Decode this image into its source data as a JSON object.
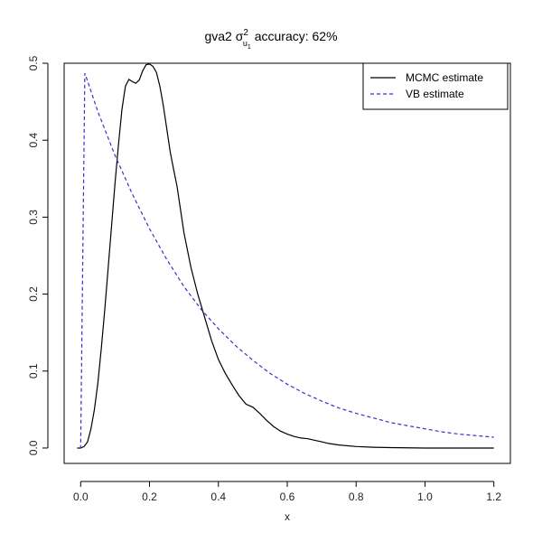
{
  "chart_data": {
    "type": "line",
    "title": {
      "prefix": "gva2 ",
      "symbol": "σ",
      "superscript": "2",
      "subscript_main": "u",
      "subscript_sub": "1",
      "suffix": " accuracy: 62%"
    },
    "xlabel": "x",
    "ylabel": "",
    "xlim": [
      -0.048,
      1.248
    ],
    "ylim": [
      -0.02,
      0.5
    ],
    "x_ticks": [
      0.0,
      0.2,
      0.4,
      0.6,
      0.8,
      1.0,
      1.2
    ],
    "x_tick_labels": [
      "0.0",
      "0.2",
      "0.4",
      "0.6",
      "0.8",
      "1.0",
      "1.2"
    ],
    "y_ticks": [
      0.0,
      0.1,
      0.2,
      0.3,
      0.4,
      0.5
    ],
    "y_tick_labels": [
      "0.0",
      "0.1",
      "0.2",
      "0.3",
      "0.4",
      "0.5"
    ],
    "grid": false,
    "legend_position": "top-right",
    "series": [
      {
        "name": "MCMC estimate",
        "style": "solid",
        "color": "#000000",
        "x": [
          -0.01,
          0.0,
          0.01,
          0.02,
          0.03,
          0.04,
          0.05,
          0.06,
          0.07,
          0.08,
          0.09,
          0.1,
          0.11,
          0.12,
          0.13,
          0.14,
          0.15,
          0.16,
          0.17,
          0.18,
          0.19,
          0.2,
          0.21,
          0.22,
          0.23,
          0.24,
          0.25,
          0.26,
          0.27,
          0.28,
          0.29,
          0.3,
          0.32,
          0.34,
          0.36,
          0.38,
          0.4,
          0.42,
          0.44,
          0.46,
          0.48,
          0.5,
          0.52,
          0.54,
          0.56,
          0.58,
          0.6,
          0.62,
          0.64,
          0.66,
          0.68,
          0.7,
          0.72,
          0.75,
          0.8,
          0.85,
          0.9,
          1.0,
          1.1,
          1.2
        ],
        "y": [
          0.0,
          0.0,
          0.002,
          0.008,
          0.025,
          0.05,
          0.085,
          0.13,
          0.18,
          0.235,
          0.29,
          0.345,
          0.395,
          0.44,
          0.47,
          0.479,
          0.476,
          0.474,
          0.478,
          0.49,
          0.498,
          0.499,
          0.496,
          0.488,
          0.47,
          0.445,
          0.415,
          0.385,
          0.362,
          0.34,
          0.31,
          0.28,
          0.235,
          0.2,
          0.17,
          0.14,
          0.115,
          0.097,
          0.082,
          0.068,
          0.057,
          0.053,
          0.045,
          0.036,
          0.028,
          0.022,
          0.018,
          0.015,
          0.013,
          0.012,
          0.01,
          0.008,
          0.006,
          0.004,
          0.002,
          0.001,
          0.0005,
          0.0,
          0.0,
          0.0
        ]
      },
      {
        "name": "VB estimate",
        "style": "dashed",
        "color": "#3333cc",
        "x": [
          -0.002,
          0.0,
          0.012,
          0.02,
          0.05,
          0.1,
          0.15,
          0.2,
          0.25,
          0.3,
          0.35,
          0.4,
          0.45,
          0.5,
          0.55,
          0.6,
          0.65,
          0.7,
          0.75,
          0.8,
          0.85,
          0.9,
          0.95,
          1.0,
          1.05,
          1.1,
          1.15,
          1.2
        ],
        "y": [
          0.0,
          0.0,
          0.487,
          0.477,
          0.437,
          0.38,
          0.33,
          0.285,
          0.245,
          0.21,
          0.18,
          0.155,
          0.133,
          0.114,
          0.097,
          0.083,
          0.071,
          0.061,
          0.052,
          0.045,
          0.039,
          0.033,
          0.029,
          0.025,
          0.021,
          0.018,
          0.016,
          0.014
        ]
      }
    ]
  }
}
